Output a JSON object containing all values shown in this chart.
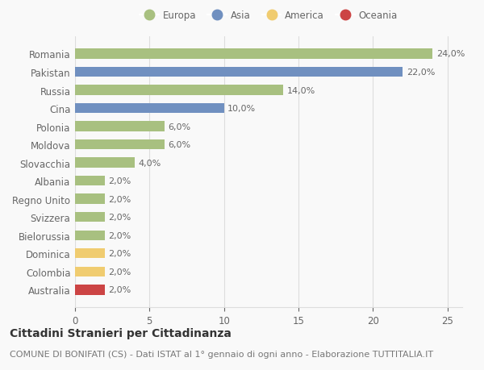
{
  "categories": [
    "Romania",
    "Pakistan",
    "Russia",
    "Cina",
    "Polonia",
    "Moldova",
    "Slovacchia",
    "Albania",
    "Regno Unito",
    "Svizzera",
    "Bielorussia",
    "Dominica",
    "Colombia",
    "Australia"
  ],
  "values": [
    24.0,
    22.0,
    14.0,
    10.0,
    6.0,
    6.0,
    4.0,
    2.0,
    2.0,
    2.0,
    2.0,
    2.0,
    2.0,
    2.0
  ],
  "continents": [
    "Europa",
    "Asia",
    "Europa",
    "Asia",
    "Europa",
    "Europa",
    "Europa",
    "Europa",
    "Europa",
    "Europa",
    "Europa",
    "America",
    "America",
    "Oceania"
  ],
  "colors": {
    "Europa": "#a8c080",
    "Asia": "#7090c0",
    "America": "#f0cc70",
    "Oceania": "#cc4444"
  },
  "title": "Cittadini Stranieri per Cittadinanza",
  "subtitle": "COMUNE DI BONIFATI (CS) - Dati ISTAT al 1° gennaio di ogni anno - Elaborazione TUTTITALIA.IT",
  "xlim": [
    0,
    26
  ],
  "xticks": [
    0,
    5,
    10,
    15,
    20,
    25
  ],
  "background_color": "#f9f9f9",
  "grid_color": "#dddddd",
  "bar_label_color": "#666666",
  "axis_label_color": "#666666",
  "title_fontsize": 10,
  "subtitle_fontsize": 8,
  "tick_fontsize": 8.5,
  "bar_label_fontsize": 8,
  "bar_height": 0.55
}
